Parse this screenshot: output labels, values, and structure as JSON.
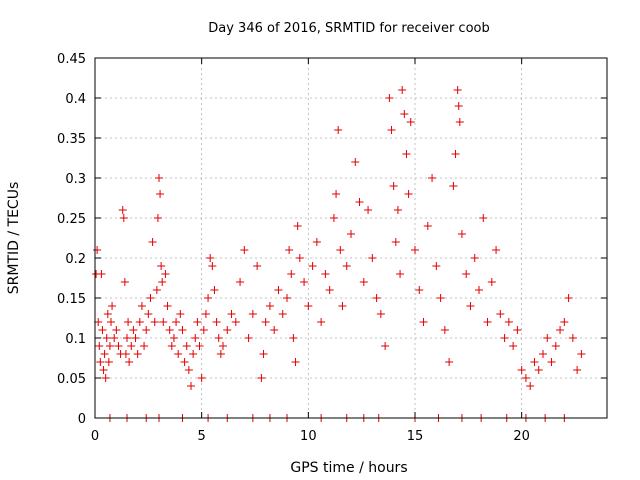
{
  "chart_data": {
    "type": "scatter",
    "title": "Day 346 of 2016, SRMTID for receiver coob",
    "xlabel": "GPS time / hours",
    "ylabel": "SRMTID / TECUs",
    "xlim": [
      0,
      24
    ],
    "ylim": [
      0,
      0.45
    ],
    "xticks": [
      0,
      5,
      10,
      15,
      20
    ],
    "yticks": [
      0,
      0.05,
      0.1,
      0.15,
      0.2,
      0.25,
      0.3,
      0.35,
      0.4,
      0.45
    ],
    "xtick_labels": [
      "0",
      "5",
      "10",
      "15",
      "20"
    ],
    "ytick_labels": [
      "0",
      "0.05",
      "0.1",
      "0.15",
      "0.2",
      "0.25",
      "0.3",
      "0.35",
      "0.4",
      "0.45"
    ],
    "grid": true,
    "marker": "+",
    "color": "#e00000",
    "series": [
      {
        "name": "SRMTID",
        "points": [
          [
            0.05,
            0.18
          ],
          [
            0.1,
            0.21
          ],
          [
            0.15,
            0.12
          ],
          [
            0.2,
            0.09
          ],
          [
            0.25,
            0.07
          ],
          [
            0.3,
            0.18
          ],
          [
            0.35,
            0.11
          ],
          [
            0.4,
            0.06
          ],
          [
            0.45,
            0.08
          ],
          [
            0.5,
            0.05
          ],
          [
            0.55,
            0.1
          ],
          [
            0.6,
            0.13
          ],
          [
            0.65,
            0.07
          ],
          [
            0.7,
            0.09
          ],
          [
            0.75,
            0.12
          ],
          [
            0.8,
            0.14
          ],
          [
            0.9,
            0.1
          ],
          [
            1.0,
            0.11
          ],
          [
            1.1,
            0.09
          ],
          [
            1.2,
            0.08
          ],
          [
            1.3,
            0.26
          ],
          [
            1.35,
            0.25
          ],
          [
            1.4,
            0.17
          ],
          [
            1.45,
            0.08
          ],
          [
            1.5,
            0.1
          ],
          [
            1.55,
            0.12
          ],
          [
            1.6,
            0.07
          ],
          [
            1.7,
            0.09
          ],
          [
            1.8,
            0.11
          ],
          [
            1.9,
            0.1
          ],
          [
            2.0,
            0.08
          ],
          [
            2.1,
            0.12
          ],
          [
            2.2,
            0.14
          ],
          [
            2.3,
            0.09
          ],
          [
            2.4,
            0.11
          ],
          [
            2.5,
            0.13
          ],
          [
            2.6,
            0.15
          ],
          [
            2.7,
            0.22
          ],
          [
            2.8,
            0.12
          ],
          [
            2.9,
            0.16
          ],
          [
            2.95,
            0.25
          ],
          [
            3.0,
            0.3
          ],
          [
            3.05,
            0.28
          ],
          [
            3.1,
            0.19
          ],
          [
            3.15,
            0.17
          ],
          [
            3.2,
            0.12
          ],
          [
            3.3,
            0.18
          ],
          [
            3.4,
            0.14
          ],
          [
            3.5,
            0.11
          ],
          [
            3.6,
            0.09
          ],
          [
            3.7,
            0.1
          ],
          [
            3.8,
            0.12
          ],
          [
            3.9,
            0.08
          ],
          [
            4.0,
            0.13
          ],
          [
            4.1,
            0.11
          ],
          [
            4.2,
            0.07
          ],
          [
            4.3,
            0.09
          ],
          [
            4.4,
            0.06
          ],
          [
            4.5,
            0.04
          ],
          [
            4.6,
            0.08
          ],
          [
            4.7,
            0.1
          ],
          [
            4.8,
            0.12
          ],
          [
            4.9,
            0.09
          ],
          [
            5.0,
            0.05
          ],
          [
            5.1,
            0.11
          ],
          [
            5.2,
            0.13
          ],
          [
            5.3,
            0.15
          ],
          [
            5.4,
            0.2
          ],
          [
            5.5,
            0.19
          ],
          [
            5.6,
            0.16
          ],
          [
            5.7,
            0.12
          ],
          [
            5.8,
            0.1
          ],
          [
            5.9,
            0.08
          ],
          [
            6.0,
            0.09
          ],
          [
            6.2,
            0.11
          ],
          [
            6.4,
            0.13
          ],
          [
            6.6,
            0.12
          ],
          [
            6.8,
            0.17
          ],
          [
            7.0,
            0.21
          ],
          [
            7.2,
            0.1
          ],
          [
            7.4,
            0.13
          ],
          [
            7.6,
            0.19
          ],
          [
            7.8,
            0.05
          ],
          [
            7.9,
            0.08
          ],
          [
            8.0,
            0.12
          ],
          [
            8.2,
            0.14
          ],
          [
            8.4,
            0.11
          ],
          [
            8.6,
            0.16
          ],
          [
            8.8,
            0.13
          ],
          [
            9.0,
            0.15
          ],
          [
            9.1,
            0.21
          ],
          [
            9.2,
            0.18
          ],
          [
            9.3,
            0.1
          ],
          [
            9.4,
            0.07
          ],
          [
            9.5,
            0.24
          ],
          [
            9.6,
            0.2
          ],
          [
            9.8,
            0.17
          ],
          [
            10.0,
            0.14
          ],
          [
            10.2,
            0.19
          ],
          [
            10.4,
            0.22
          ],
          [
            10.6,
            0.12
          ],
          [
            10.8,
            0.18
          ],
          [
            11.0,
            0.16
          ],
          [
            11.2,
            0.25
          ],
          [
            11.3,
            0.28
          ],
          [
            11.4,
            0.36
          ],
          [
            11.5,
            0.21
          ],
          [
            11.6,
            0.14
          ],
          [
            11.8,
            0.19
          ],
          [
            12.0,
            0.23
          ],
          [
            12.2,
            0.32
          ],
          [
            12.4,
            0.27
          ],
          [
            12.6,
            0.17
          ],
          [
            12.8,
            0.26
          ],
          [
            13.0,
            0.2
          ],
          [
            13.2,
            0.15
          ],
          [
            13.4,
            0.13
          ],
          [
            13.6,
            0.09
          ],
          [
            13.8,
            0.4
          ],
          [
            13.9,
            0.36
          ],
          [
            14.0,
            0.29
          ],
          [
            14.1,
            0.22
          ],
          [
            14.2,
            0.26
          ],
          [
            14.3,
            0.18
          ],
          [
            14.4,
            0.41
          ],
          [
            14.5,
            0.38
          ],
          [
            14.6,
            0.33
          ],
          [
            14.7,
            0.28
          ],
          [
            14.8,
            0.37
          ],
          [
            15.0,
            0.21
          ],
          [
            15.2,
            0.16
          ],
          [
            15.4,
            0.12
          ],
          [
            15.6,
            0.24
          ],
          [
            15.8,
            0.3
          ],
          [
            16.0,
            0.19
          ],
          [
            16.2,
            0.15
          ],
          [
            16.4,
            0.11
          ],
          [
            16.6,
            0.07
          ],
          [
            16.8,
            0.29
          ],
          [
            16.9,
            0.33
          ],
          [
            17.0,
            0.41
          ],
          [
            17.05,
            0.39
          ],
          [
            17.1,
            0.37
          ],
          [
            17.2,
            0.23
          ],
          [
            17.4,
            0.18
          ],
          [
            17.6,
            0.14
          ],
          [
            17.8,
            0.2
          ],
          [
            18.0,
            0.16
          ],
          [
            18.2,
            0.25
          ],
          [
            18.4,
            0.12
          ],
          [
            18.6,
            0.17
          ],
          [
            18.8,
            0.21
          ],
          [
            19.0,
            0.13
          ],
          [
            19.2,
            0.1
          ],
          [
            19.4,
            0.12
          ],
          [
            19.6,
            0.09
          ],
          [
            19.8,
            0.11
          ],
          [
            20.0,
            0.06
          ],
          [
            20.2,
            0.05
          ],
          [
            20.4,
            0.04
          ],
          [
            20.6,
            0.07
          ],
          [
            20.8,
            0.06
          ],
          [
            21.0,
            0.08
          ],
          [
            21.2,
            0.1
          ],
          [
            21.4,
            0.07
          ],
          [
            21.6,
            0.09
          ],
          [
            21.8,
            0.11
          ],
          [
            22.0,
            0.12
          ],
          [
            22.2,
            0.15
          ],
          [
            22.4,
            0.1
          ],
          [
            22.6,
            0.06
          ],
          [
            22.8,
            0.08
          ]
        ]
      },
      {
        "name": "zero-values",
        "points": [
          [
            0.7,
            0
          ],
          [
            1.5,
            0
          ],
          [
            2.4,
            0
          ],
          [
            3.0,
            0
          ],
          [
            4.1,
            0
          ],
          [
            5.3,
            0
          ],
          [
            6.2,
            0
          ],
          [
            7.4,
            0
          ],
          [
            8.2,
            0
          ],
          [
            9.0,
            0
          ],
          [
            10.6,
            0
          ],
          [
            11.8,
            0
          ],
          [
            12.6,
            0
          ],
          [
            13.3,
            0
          ],
          [
            15.0,
            0
          ],
          [
            16.1,
            0
          ],
          [
            17.2,
            0
          ],
          [
            18.1,
            0
          ],
          [
            19.3,
            0
          ],
          [
            20.2,
            0
          ],
          [
            21.1,
            0
          ],
          [
            22.0,
            0
          ]
        ]
      }
    ]
  }
}
